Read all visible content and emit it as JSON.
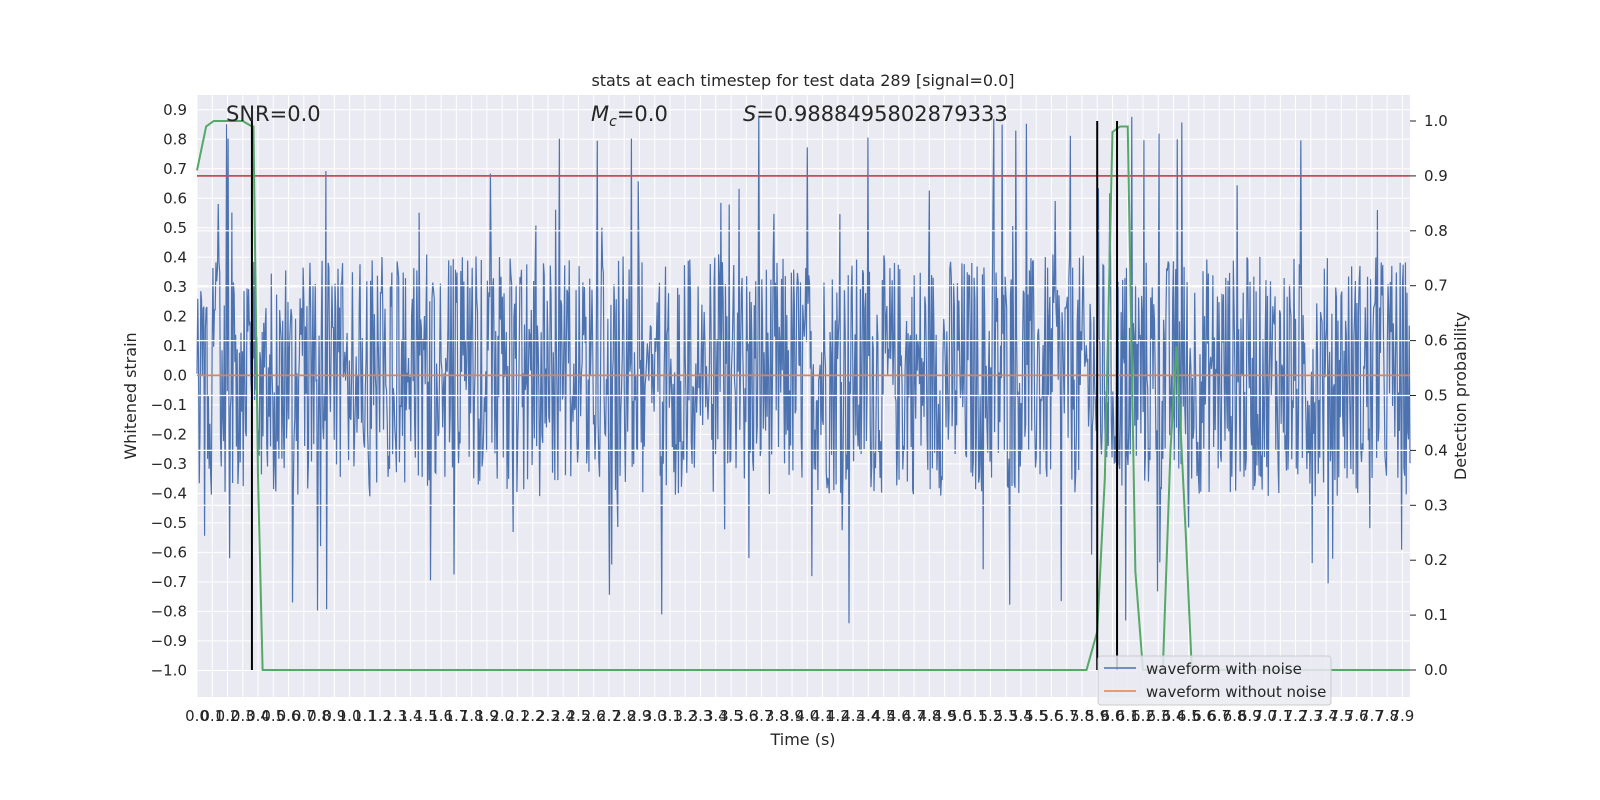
{
  "chart_data": {
    "type": "line",
    "title": "stats at each timestep for test data 289 [signal=0.0]",
    "xlabel": "Time (s)",
    "ylabel_left": "Whitened strain",
    "ylabel_right": "Detection probability",
    "xlim": [
      0.0,
      7.95
    ],
    "ylim_left": [
      -1.09,
      0.95
    ],
    "ylim_right": [
      0.0,
      1.0
    ],
    "yticks_left": [
      "−1.0",
      "−0.9",
      "−0.8",
      "−0.7",
      "−0.6",
      "−0.5",
      "−0.4",
      "−0.3",
      "−0.2",
      "−0.1",
      "0.0",
      "0.1",
      "0.2",
      "0.3",
      "0.4",
      "0.5",
      "0.6",
      "0.7",
      "0.8",
      "0.9"
    ],
    "yticks_right": [
      "0.0",
      "0.1",
      "0.2",
      "0.3",
      "0.4",
      "0.5",
      "0.6",
      "0.7",
      "0.8",
      "0.9",
      "1.0"
    ],
    "xticks": [
      "0.0",
      "0.1",
      "0.2",
      "0.3",
      "0.4",
      "0.5",
      "0.6",
      "0.7",
      "0.8",
      "0.9",
      "1.0",
      "1.1",
      "1.2",
      "1.3",
      "1.4",
      "1.5",
      "1.6",
      "1.7",
      "1.8",
      "1.9",
      "2.0",
      "2.1",
      "2.2",
      "2.3",
      "2.4",
      "2.5",
      "2.6",
      "2.7",
      "2.8",
      "2.9",
      "3.0",
      "3.1",
      "3.2",
      "3.3",
      "3.4",
      "3.5",
      "3.6",
      "3.7",
      "3.8",
      "3.9",
      "4.0",
      "4.1",
      "4.2",
      "4.3",
      "4.4",
      "4.5",
      "4.6",
      "4.7",
      "4.8",
      "4.9",
      "5.0",
      "5.1",
      "5.2",
      "5.3",
      "5.4",
      "5.5",
      "5.6",
      "5.7",
      "5.8",
      "5.9",
      "6.0",
      "6.1",
      "6.2",
      "6.3",
      "6.4",
      "6.5",
      "6.6",
      "6.7",
      "6.8",
      "6.9",
      "7.0",
      "7.1",
      "7.2",
      "7.3",
      "7.4",
      "7.5",
      "7.6",
      "7.7",
      "7.8",
      "7.9"
    ],
    "annotations": {
      "snr": "SNR=0.0",
      "mc": "M_c=0.0",
      "s": "S=0.9888495802879333"
    },
    "series": [
      {
        "name": "waveform with noise",
        "color": "#4c72b0",
        "style": "dense noise between roughly -0.45 and +0.45 with spikes to about ±0.9"
      },
      {
        "name": "waveform without noise",
        "color": "#dd8452",
        "values_constant": 0.0
      },
      {
        "color": "#55a868",
        "axis": "right",
        "x": [
          0.0,
          0.06,
          0.11,
          0.3,
          0.36,
          0.37,
          0.4,
          0.43,
          5.83,
          5.9,
          5.95,
          6.0,
          6.05,
          6.1,
          6.15,
          6.2,
          6.25,
          6.3,
          6.33,
          6.38,
          6.42,
          6.48,
          6.52,
          6.56,
          7.95
        ],
        "y": [
          0.91,
          0.99,
          1.0,
          1.0,
          0.99,
          0.99,
          0.35,
          0.0,
          0.0,
          0.07,
          0.35,
          0.98,
          0.99,
          0.99,
          0.18,
          0.0,
          0.0,
          0.0,
          0.0,
          0.4,
          0.59,
          0.25,
          0.0,
          0.0,
          0.0
        ]
      }
    ],
    "reference_lines": {
      "threshold": {
        "axis": "right",
        "value": 0.9,
        "color": "#c44e52"
      },
      "vertical_markers": {
        "x": [
          0.36,
          5.9,
          6.03
        ],
        "color": "#000000",
        "ylim_right": [
          0.0,
          1.0
        ]
      }
    },
    "legend": {
      "placement": "lower-right",
      "entries": [
        "waveform with noise",
        "waveform without noise"
      ]
    },
    "grid": true,
    "background": "#eaeaf2"
  }
}
